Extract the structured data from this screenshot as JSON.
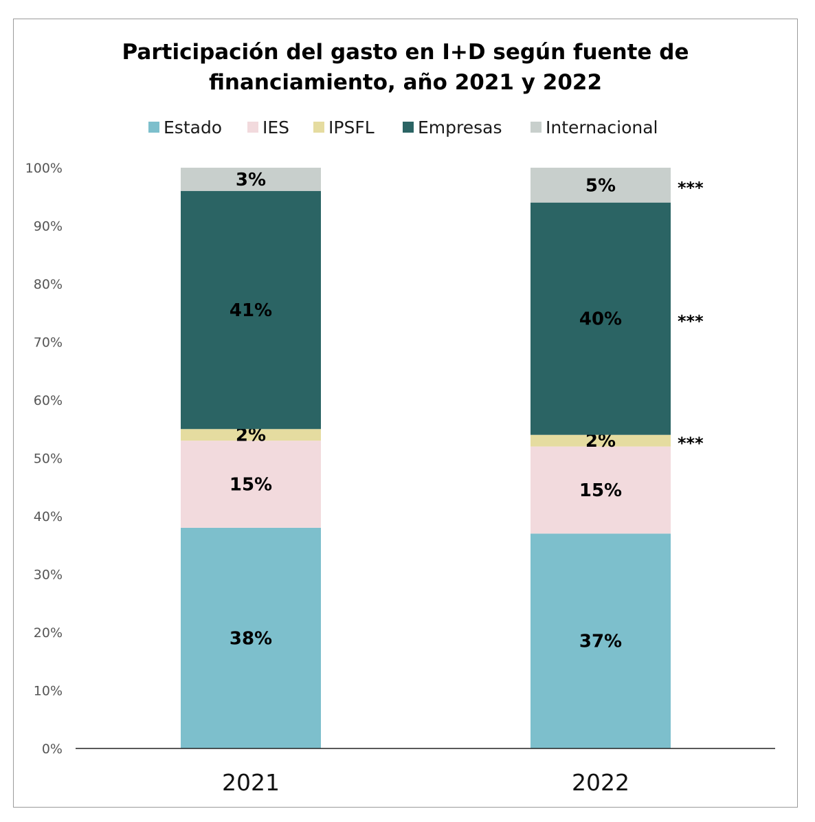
{
  "chart_data": {
    "type": "bar",
    "stacked": true,
    "title_lines": [
      "Participación del gasto en I+D según fuente de",
      "financiamiento, año 2021 y 2022"
    ],
    "categories": [
      "2021",
      "2022"
    ],
    "ylim": [
      0,
      100
    ],
    "yticks": [
      "0%",
      "10%",
      "20%",
      "30%",
      "40%",
      "50%",
      "60%",
      "70%",
      "80%",
      "90%",
      "100%"
    ],
    "legend_position": "top",
    "grid": false,
    "series": [
      {
        "name": "Estado",
        "color": "#7dbfcc",
        "values": [
          38,
          37
        ],
        "labels": [
          "38%",
          "37%"
        ]
      },
      {
        "name": "IES",
        "color": "#f2dadd",
        "values": [
          15,
          15
        ],
        "labels": [
          "15%",
          "15%"
        ]
      },
      {
        "name": "IPSFL",
        "color": "#e5dca0",
        "values": [
          2,
          2
        ],
        "labels": [
          "2%",
          "2%"
        ]
      },
      {
        "name": "Empresas",
        "color": "#2b6464",
        "values": [
          41,
          40
        ],
        "labels": [
          "41%",
          "40%"
        ]
      },
      {
        "name": "Internacional",
        "color": "#c8cfcc",
        "values": [
          3,
          5
        ],
        "labels": [
          "3%",
          "5%"
        ]
      }
    ],
    "annotations": [
      {
        "category": "2022",
        "series": "IPSFL",
        "text": "***"
      },
      {
        "category": "2022",
        "series": "Empresas",
        "text": "***"
      },
      {
        "category": "2022",
        "series": "Internacional",
        "text": "***"
      }
    ]
  }
}
